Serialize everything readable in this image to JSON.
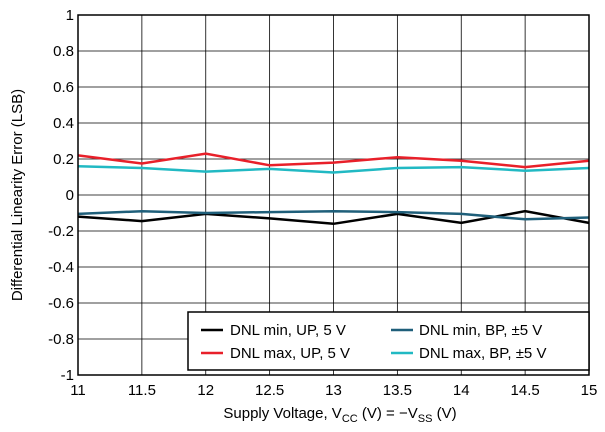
{
  "chart_data": {
    "type": "line",
    "xlabel": "Supply Voltage, V",
    "xlabel_sub": "CC",
    "xlabel_mid": " (V) = −V",
    "xlabel_sub2": "SS",
    "xlabel_end": " (V)",
    "ylabel": "Differential Linearity Error (LSB)",
    "xlim": [
      11,
      15
    ],
    "ylim": [
      -1,
      1
    ],
    "x_ticks": [
      "11",
      "11.5",
      "12",
      "12.5",
      "13",
      "13.5",
      "14",
      "14.5",
      "15"
    ],
    "y_ticks": [
      "1",
      "0.8",
      "0.6",
      "0.4",
      "0.2",
      "0",
      "-0.2",
      "-0.4",
      "-0.6",
      "-0.8",
      "-1"
    ],
    "grid": true,
    "legend_position": "bottom-right",
    "x": [
      11,
      11.5,
      12,
      12.5,
      13,
      13.5,
      14,
      14.5,
      15
    ],
    "series": [
      {
        "name": "DNL min, UP, 5 V",
        "color": "#000000",
        "values": [
          -0.12,
          -0.145,
          -0.105,
          -0.13,
          -0.16,
          -0.105,
          -0.155,
          -0.09,
          -0.155
        ]
      },
      {
        "name": "DNL max, UP, 5 V",
        "color": "#e8202a",
        "values": [
          0.22,
          0.175,
          0.23,
          0.165,
          0.18,
          0.21,
          0.19,
          0.155,
          0.19
        ]
      },
      {
        "name": "DNL min, BP, ±5 V",
        "color": "#1f5f7a",
        "values": [
          -0.105,
          -0.09,
          -0.1,
          -0.095,
          -0.09,
          -0.095,
          -0.105,
          -0.135,
          -0.125
        ]
      },
      {
        "name": "DNL max, BP, ±5 V",
        "color": "#21b9c3",
        "values": [
          0.16,
          0.15,
          0.13,
          0.145,
          0.125,
          0.15,
          0.155,
          0.135,
          0.15
        ]
      }
    ]
  }
}
